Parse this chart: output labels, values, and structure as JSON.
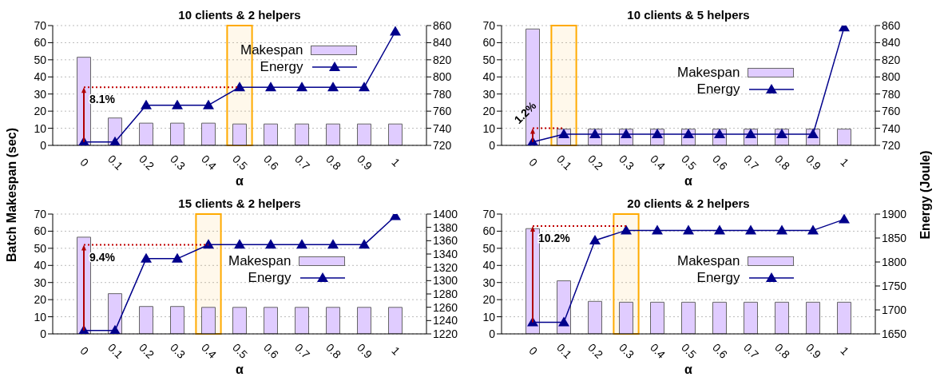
{
  "chart_data": [
    {
      "type": "bar",
      "title": "10 clients & 2 helpers",
      "xlabel": "α",
      "x": [
        0,
        0.1,
        0.2,
        0.3,
        0.4,
        0.5,
        0.6,
        0.7,
        0.8,
        0.9,
        1
      ],
      "xlim": [
        -0.1,
        1.1
      ],
      "xticks": [
        0,
        0.1,
        0.2,
        0.3,
        0.4,
        0.5,
        0.6,
        0.7,
        0.8,
        0.9,
        1
      ],
      "series": [
        {
          "name": "Makespan",
          "color": "#e0ccff",
          "values": [
            51.5,
            16,
            13,
            13,
            13,
            12.5,
            12.5,
            12.5,
            12.5,
            12.5,
            12.5
          ]
        },
        {
          "name": "Energy",
          "type": "line",
          "axis": "y2",
          "color": "#00008b",
          "values": [
            724,
            724,
            767,
            767,
            767,
            788,
            788,
            788,
            788,
            788,
            853
          ]
        }
      ],
      "ylim": [
        0,
        70
      ],
      "yticks": [
        0,
        10,
        20,
        30,
        40,
        50,
        60,
        70
      ],
      "y2lim": [
        720,
        860
      ],
      "y2ticks": [
        720,
        740,
        760,
        780,
        800,
        820,
        840,
        860
      ],
      "grid": "y",
      "legend": "top right",
      "marker": "triangle",
      "annotations": [
        {
          "text": "8.1%",
          "x": 0.5,
          "y": 34
        }
      ],
      "bands": [
        {
          "axis": "x",
          "from": 0.46,
          "to": 0.54,
          "color": "#ffaa00"
        }
      ]
    },
    {
      "type": "bar",
      "title": "10 clients & 5 helpers",
      "xlabel": "α",
      "x": [
        0,
        0.1,
        0.2,
        0.3,
        0.4,
        0.5,
        0.6,
        0.7,
        0.8,
        0.9,
        1
      ],
      "xlim": [
        -0.1,
        1.1
      ],
      "xticks": [
        0,
        0.1,
        0.2,
        0.3,
        0.4,
        0.5,
        0.6,
        0.7,
        0.8,
        0.9,
        1
      ],
      "series": [
        {
          "name": "Makespan",
          "color": "#e0ccff",
          "values": [
            68,
            9.5,
            9.5,
            9.5,
            9.5,
            9.5,
            9.5,
            9.5,
            9.5,
            9.5,
            9.5
          ]
        },
        {
          "name": "Energy",
          "type": "line",
          "axis": "y2",
          "color": "#00008b",
          "values": [
            724,
            733,
            733,
            733,
            733,
            733,
            733,
            733,
            733,
            733,
            858
          ]
        }
      ],
      "ylim": [
        0,
        70
      ],
      "yticks": [
        0,
        10,
        20,
        30,
        40,
        50,
        60,
        70
      ],
      "y2lim": [
        720,
        860
      ],
      "y2ticks": [
        720,
        740,
        760,
        780,
        800,
        820,
        840,
        860
      ],
      "grid": "y",
      "legend": "right",
      "marker": "triangle",
      "annotations": [
        {
          "text": "1.2%",
          "x": 0.1,
          "y": 10
        }
      ],
      "bands": [
        {
          "axis": "x",
          "from": 0.06,
          "to": 0.14,
          "color": "#ffaa00"
        }
      ]
    },
    {
      "type": "bar",
      "title": "15 clients & 2 helpers",
      "xlabel": "α",
      "ylabel": "Batch Makespan (sec)",
      "x": [
        0,
        0.1,
        0.2,
        0.3,
        0.4,
        0.5,
        0.6,
        0.7,
        0.8,
        0.9,
        1
      ],
      "xlim": [
        -0.1,
        1.1
      ],
      "xticks": [
        0,
        0.1,
        0.2,
        0.3,
        0.4,
        0.5,
        0.6,
        0.7,
        0.8,
        0.9,
        1
      ],
      "series": [
        {
          "name": "Makespan",
          "color": "#e0ccff",
          "values": [
            56.5,
            23.5,
            16,
            16,
            15.5,
            15.5,
            15.5,
            15.5,
            15.5,
            15.5,
            15.5
          ]
        },
        {
          "name": "Energy",
          "type": "line",
          "axis": "y2",
          "color": "#00008b",
          "values": [
            1225,
            1225,
            1333,
            1333,
            1354,
            1354,
            1354,
            1354,
            1354,
            1354,
            1397
          ]
        }
      ],
      "ylim": [
        0,
        70
      ],
      "yticks": [
        0,
        10,
        20,
        30,
        40,
        50,
        60,
        70
      ],
      "y2lim": [
        1220,
        1400
      ],
      "y2ticks": [
        1220,
        1240,
        1260,
        1280,
        1300,
        1320,
        1340,
        1360,
        1380,
        1400
      ],
      "grid": "y",
      "legend": "right",
      "marker": "triangle",
      "annotations": [
        {
          "text": "9.4%",
          "x": 0.4,
          "y": 52
        }
      ],
      "bands": [
        {
          "axis": "x",
          "from": 0.36,
          "to": 0.44,
          "color": "#ffaa00"
        }
      ]
    },
    {
      "type": "bar",
      "title": "20 clients & 2 helpers",
      "xlabel": "α",
      "y2label": "Energy (Joule)",
      "x": [
        0,
        0.1,
        0.2,
        0.3,
        0.4,
        0.5,
        0.6,
        0.7,
        0.8,
        0.9,
        1
      ],
      "xlim": [
        -0.1,
        1.1
      ],
      "xticks": [
        0,
        0.1,
        0.2,
        0.3,
        0.4,
        0.5,
        0.6,
        0.7,
        0.8,
        0.9,
        1
      ],
      "series": [
        {
          "name": "Makespan",
          "color": "#e0ccff",
          "values": [
            61.5,
            31,
            19,
            18.5,
            18.5,
            18.5,
            18.5,
            18.5,
            18.5,
            18.5,
            18.5
          ]
        },
        {
          "name": "Energy",
          "type": "line",
          "axis": "y2",
          "color": "#00008b",
          "values": [
            1674,
            1674,
            1845,
            1866,
            1866,
            1866,
            1866,
            1866,
            1866,
            1866,
            1889
          ]
        }
      ],
      "ylim": [
        0,
        70
      ],
      "yticks": [
        0,
        10,
        20,
        30,
        40,
        50,
        60,
        70
      ],
      "y2lim": [
        1650,
        1900
      ],
      "y2ticks": [
        1650,
        1700,
        1750,
        1800,
        1850,
        1900
      ],
      "grid": "y",
      "legend": "right",
      "marker": "triangle",
      "annotations": [
        {
          "text": "10.2%",
          "x": 0.3,
          "y": 63
        }
      ],
      "bands": [
        {
          "axis": "x",
          "from": 0.26,
          "to": 0.34,
          "color": "#ffaa00"
        }
      ]
    }
  ]
}
